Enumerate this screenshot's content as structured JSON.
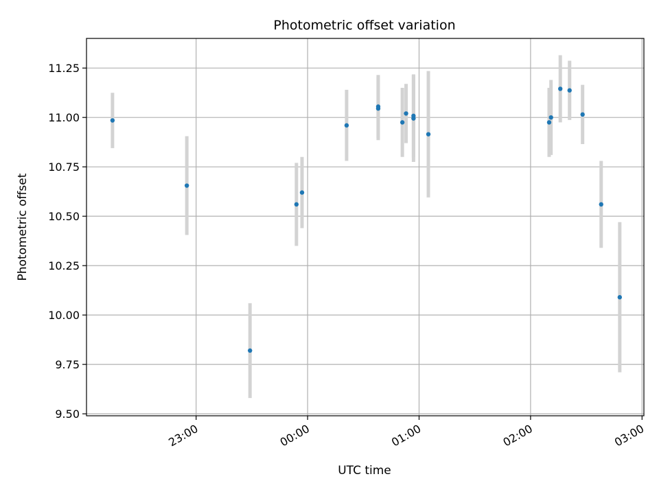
{
  "chart_data": {
    "type": "scatter",
    "title": "Photometric offset variation",
    "xlabel": "UTC time",
    "ylabel": "Photometric offset",
    "x_unit": "UTC hh:mm",
    "xlim": [
      "22:01",
      "03:01"
    ],
    "ylim": [
      9.49,
      11.4
    ],
    "x_ticks": [
      "23:00",
      "00:00",
      "01:00",
      "02:00",
      "03:00"
    ],
    "y_ticks": [
      9.5,
      9.75,
      10.0,
      10.25,
      10.5,
      10.75,
      11.0,
      11.25
    ],
    "y_tick_labels": [
      "9.50",
      "9.75",
      "10.00",
      "10.25",
      "10.50",
      "10.75",
      "11.00",
      "11.25"
    ],
    "grid": true,
    "colors": {
      "marker": "#1f77b4",
      "errorbar": "#d3d3d3",
      "grid": "#b0b0b0"
    },
    "points": [
      {
        "x": "22:15",
        "y": 10.985,
        "yerr": 0.14
      },
      {
        "x": "22:55",
        "y": 10.655,
        "yerr": 0.25
      },
      {
        "x": "23:29",
        "y": 9.82,
        "yerr": 0.24
      },
      {
        "x": "23:54",
        "y": 10.56,
        "yerr": 0.21
      },
      {
        "x": "23:57",
        "y": 10.62,
        "yerr": 0.18
      },
      {
        "x": "00:21",
        "y": 10.96,
        "yerr": 0.18
      },
      {
        "x": "00:38",
        "y": 11.055,
        "yerr": 0.16
      },
      {
        "x": "00:38",
        "y": 11.045,
        "yerr": 0.16
      },
      {
        "x": "00:51",
        "y": 10.975,
        "yerr": 0.175
      },
      {
        "x": "00:53",
        "y": 11.02,
        "yerr": 0.15
      },
      {
        "x": "00:57",
        "y": 10.995,
        "yerr": 0.22
      },
      {
        "x": "00:57",
        "y": 11.008,
        "yerr": 0.21
      },
      {
        "x": "01:05",
        "y": 10.915,
        "yerr": 0.32
      },
      {
        "x": "02:10",
        "y": 10.975,
        "yerr": 0.175
      },
      {
        "x": "02:11",
        "y": 11.0,
        "yerr": 0.19
      },
      {
        "x": "02:16",
        "y": 11.145,
        "yerr": 0.17
      },
      {
        "x": "02:21",
        "y": 11.137,
        "yerr": 0.15
      },
      {
        "x": "02:28",
        "y": 11.015,
        "yerr": 0.15
      },
      {
        "x": "02:38",
        "y": 10.56,
        "yerr": 0.22
      },
      {
        "x": "02:48",
        "y": 10.09,
        "yerr": 0.38
      }
    ]
  }
}
